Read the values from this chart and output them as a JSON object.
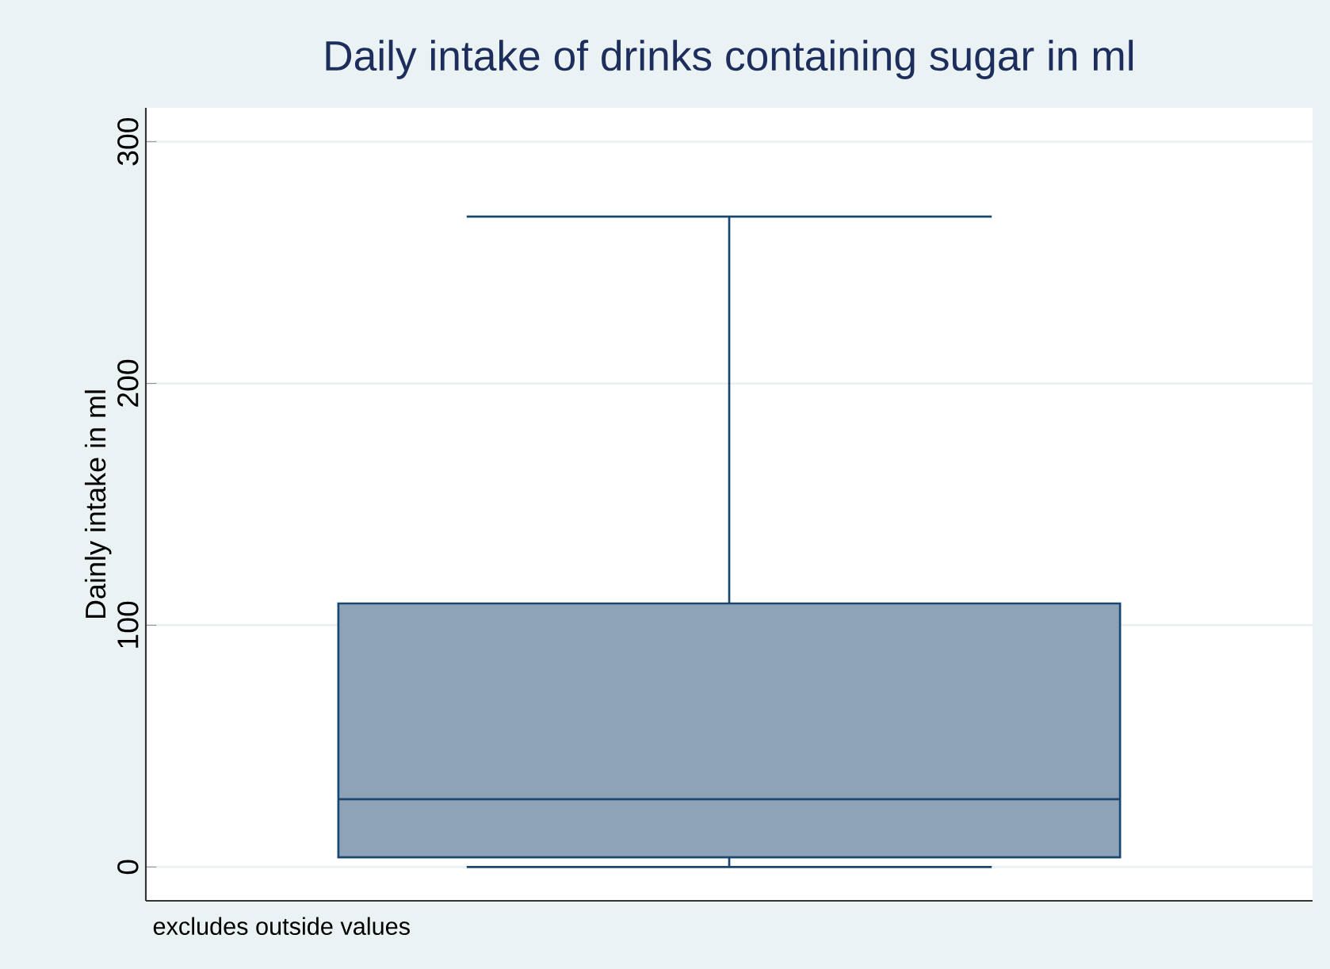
{
  "chart_data": {
    "type": "box",
    "title": "Daily intake of drinks containing sugar in ml",
    "ylabel": "Dainly intake in ml",
    "categories": [
      null
    ],
    "boxes": [
      {
        "low": 0,
        "q1": 4,
        "median": 28,
        "q3": 109,
        "high": 269
      }
    ],
    "color": "#8ea3b8",
    "ylim": [
      -14,
      314
    ],
    "yticks": [
      0,
      100,
      200,
      300
    ],
    "grid": "y",
    "annotations": [
      "excludes outside values"
    ]
  }
}
